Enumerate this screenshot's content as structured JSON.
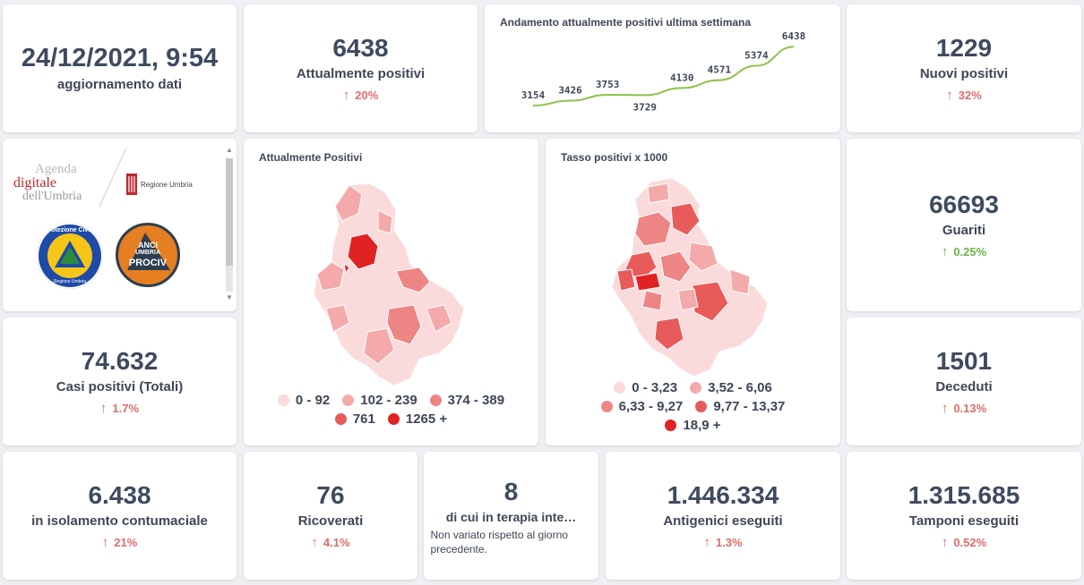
{
  "update": {
    "datetime": "24/12/2021, 9:54",
    "label": "aggiornamento dati"
  },
  "positivi": {
    "value": "6438",
    "label": "Attualmente positivi",
    "delta": "20%",
    "trend": "up"
  },
  "trend_chart": {
    "title": "Andamento attualmente positivi ultima settimana",
    "line_color": "#8bc34a"
  },
  "chart_data": {
    "type": "line",
    "title": "Andamento attualmente positivi ultima settimana",
    "series": [
      {
        "values": [
          3154,
          3426,
          3753,
          3729,
          4130,
          4571,
          5374,
          6438
        ]
      }
    ],
    "data_labels": [
      "3154",
      "3426",
      "3753",
      "3729",
      "4130",
      "4571",
      "5374",
      "6438"
    ],
    "ylim": [
      3000,
      6500
    ]
  },
  "nuovi": {
    "value": "1229",
    "label": "Nuovi positivi",
    "delta": "32%"
  },
  "logos": {
    "agenda_line1": "Agenda",
    "agenda_line2": "digitale",
    "agenda_line3": "dell'Umbria",
    "regione": "Regione Umbria",
    "protezione_top": "Protezione Civile",
    "protezione_bottom": "Regione Umbria",
    "anci_1": "ANCI",
    "anci_2": "UMBRIA",
    "anci_3": "PROCIV"
  },
  "map1": {
    "title": "Attualmente Positivi",
    "legend": [
      {
        "label": "0 - 92",
        "color": "#fadada"
      },
      {
        "label": "102 - 239",
        "color": "#f4aaaa"
      },
      {
        "label": "374 - 389",
        "color": "#ee8585"
      },
      {
        "label": "761",
        "color": "#e95a5a"
      },
      {
        "label": "1265 +",
        "color": "#e12222"
      }
    ]
  },
  "map2": {
    "title": "Tasso positivi x 1000",
    "legend": [
      {
        "label": "0 - 3,23",
        "color": "#fadada"
      },
      {
        "label": "3,52 - 6,06",
        "color": "#f4aaaa"
      },
      {
        "label": "6,33 - 9,27",
        "color": "#ee8585"
      },
      {
        "label": "9,77 - 13,37",
        "color": "#e95a5a"
      },
      {
        "label": "18,9 +",
        "color": "#e12222"
      }
    ]
  },
  "guariti": {
    "value": "66693",
    "label": "Guariti",
    "delta": "0.25%"
  },
  "totali": {
    "value": "74.632",
    "label": "Casi positivi (Totali)",
    "delta": "1.7%"
  },
  "deceduti": {
    "value": "1501",
    "label": "Deceduti",
    "delta": "0.13%"
  },
  "isolamento": {
    "value": "6.438",
    "label": "in isolamento contumaciale",
    "delta": "21%"
  },
  "ricoverati": {
    "value": "76",
    "label": "Ricoverati",
    "delta": "4.1%"
  },
  "terapia": {
    "value": "8",
    "label": "di cui in terapia inte…",
    "note": "Non variato rispetto al giorno precedente."
  },
  "antigenici": {
    "value": "1.446.334",
    "label": "Antigenici eseguiti",
    "delta": "1.3%"
  },
  "tamponi": {
    "value": "1.315.685",
    "label": "Tamponi eseguiti",
    "delta": "0.52%"
  },
  "icons": {
    "up_arrow": "arrow-up-icon"
  }
}
